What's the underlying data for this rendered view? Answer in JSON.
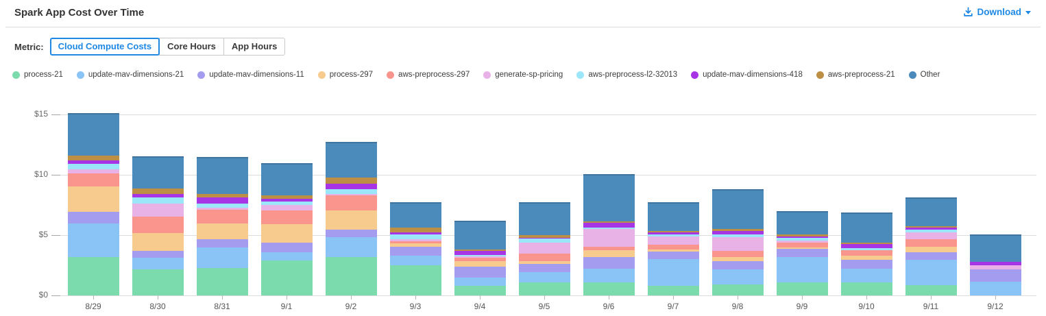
{
  "header": {
    "title": "Spark App Cost Over Time",
    "download": {
      "label": "Download"
    }
  },
  "metric": {
    "label": "Metric:",
    "options": [
      {
        "label": "Cloud Compute Costs",
        "active": true
      },
      {
        "label": "Core Hours",
        "active": false
      },
      {
        "label": "App Hours",
        "active": false
      }
    ]
  },
  "theme": {
    "accent_blue": "#1E88E5",
    "grid_color": "#dcdcdc",
    "axis_label_color": "#666666",
    "title_color": "#333333"
  },
  "chart_data": {
    "type": "bar",
    "stacked": true,
    "title": "Spark App Cost Over Time",
    "xlabel": "",
    "ylabel": "",
    "ylim": [
      0,
      15
    ],
    "grid": "horizontal",
    "legend_position": "top",
    "yticks": [
      {
        "value": 0,
        "label": "$0"
      },
      {
        "value": 5,
        "label": "$5"
      },
      {
        "value": 10,
        "label": "$10"
      },
      {
        "value": 15,
        "label": "$15"
      }
    ],
    "categories": [
      "8/29",
      "8/30",
      "8/31",
      "9/1",
      "9/2",
      "9/3",
      "9/4",
      "9/5",
      "9/6",
      "9/7",
      "9/8",
      "9/9",
      "9/10",
      "9/11",
      "9/12"
    ],
    "series": [
      {
        "name": "process-21",
        "color": "#7BDBAC",
        "values": [
          3.15,
          2.15,
          2.25,
          2.9,
          3.2,
          2.5,
          0.8,
          1.05,
          1.1,
          0.8,
          0.9,
          1.05,
          1.1,
          0.85,
          0.0
        ]
      },
      {
        "name": "update-mav-dimensions-21",
        "color": "#8AC4F7",
        "values": [
          2.8,
          0.95,
          1.7,
          0.65,
          1.6,
          0.8,
          0.7,
          0.85,
          1.1,
          2.2,
          1.25,
          2.1,
          1.1,
          2.1,
          1.15
        ]
      },
      {
        "name": "update-mav-dimensions-11",
        "color": "#A49CEF",
        "values": [
          1.0,
          0.6,
          0.7,
          0.8,
          0.65,
          0.75,
          0.9,
          0.7,
          1.0,
          0.65,
          0.7,
          0.7,
          0.75,
          0.6,
          1.0
        ]
      },
      {
        "name": "process-297",
        "color": "#F7CB8D",
        "values": [
          2.1,
          1.45,
          1.3,
          1.55,
          1.6,
          0.25,
          0.45,
          0.25,
          0.55,
          0.15,
          0.35,
          0.15,
          0.35,
          0.5,
          0.0
        ]
      },
      {
        "name": "aws-preprocess-297",
        "color": "#FA958E",
        "values": [
          1.05,
          1.4,
          1.15,
          1.15,
          1.25,
          0.2,
          0.3,
          0.6,
          0.3,
          0.4,
          0.5,
          0.4,
          0.45,
          0.6,
          0.0
        ]
      },
      {
        "name": "generate-sp-pricing",
        "color": "#E8B2E6",
        "values": [
          0.35,
          1.05,
          0.15,
          0.45,
          0.1,
          0.15,
          0.1,
          0.95,
          1.45,
          0.7,
          1.15,
          0.15,
          0.0,
          0.6,
          0.35
        ]
      },
      {
        "name": "aws-preprocess-l2-32013",
        "color": "#9BE6F8",
        "values": [
          0.45,
          0.55,
          0.35,
          0.3,
          0.4,
          0.4,
          0.1,
          0.3,
          0.15,
          0.15,
          0.2,
          0.2,
          0.15,
          0.2,
          0.0
        ]
      },
      {
        "name": "update-mav-dimensions-418",
        "color": "#A835E5",
        "values": [
          0.3,
          0.25,
          0.55,
          0.2,
          0.45,
          0.2,
          0.35,
          0.1,
          0.35,
          0.15,
          0.3,
          0.15,
          0.35,
          0.15,
          0.3
        ]
      },
      {
        "name": "aws-preprocess-21",
        "color": "#BC8F45",
        "values": [
          0.4,
          0.45,
          0.25,
          0.3,
          0.55,
          0.4,
          0.1,
          0.2,
          0.15,
          0.15,
          0.15,
          0.15,
          0.15,
          0.15,
          0.0
        ]
      },
      {
        "name": "Other",
        "color": "#4B8BBC",
        "values": [
          3.5,
          2.7,
          3.1,
          2.65,
          2.95,
          2.05,
          2.4,
          2.75,
          3.9,
          2.4,
          3.3,
          1.95,
          2.5,
          2.35,
          2.25
        ]
      }
    ]
  }
}
